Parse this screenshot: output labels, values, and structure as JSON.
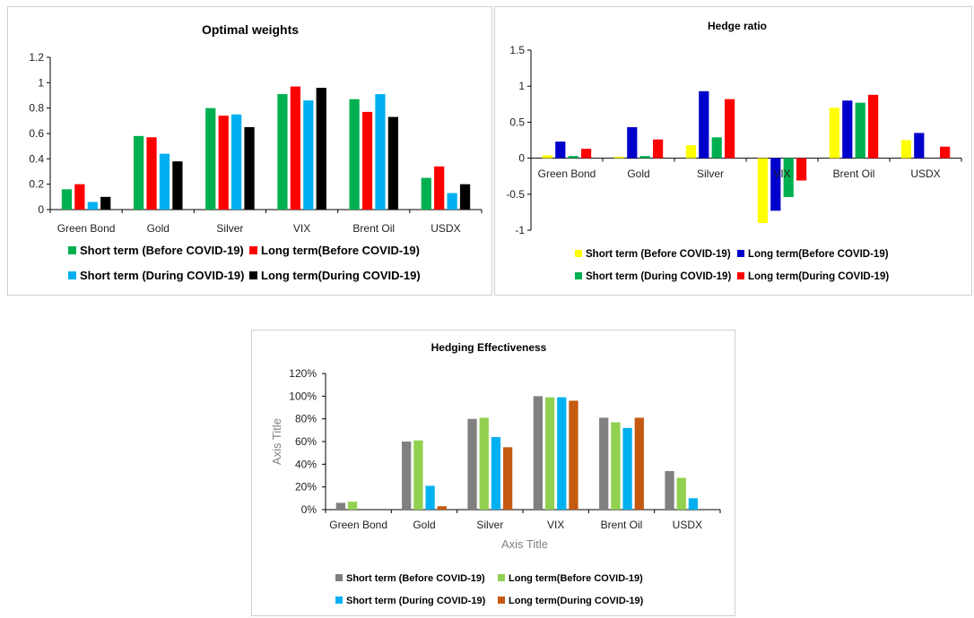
{
  "chart_data": [
    {
      "id": "weights",
      "type": "bar",
      "title": "Optimal weights",
      "categories": [
        "Green Bond",
        "Gold",
        "Silver",
        "VIX",
        "Brent Oil",
        "USDX"
      ],
      "ylim": [
        0,
        1.2
      ],
      "yticks": [
        0,
        0.2,
        0.4,
        0.6,
        0.8,
        1,
        1.2
      ],
      "ytick_labels": [
        "0",
        "0.2",
        "0.4",
        "0.6",
        "0.8",
        "1",
        "1.2"
      ],
      "series": [
        {
          "name": "Short term (Before COVID-19)",
          "color": "#00b050",
          "values": [
            0.16,
            0.58,
            0.8,
            0.91,
            0.87,
            0.25
          ]
        },
        {
          "name": "Long term(Before COVID-19)",
          "color": "#ff0000",
          "values": [
            0.2,
            0.57,
            0.74,
            0.97,
            0.77,
            0.34
          ]
        },
        {
          "name": "Short term (During COVID-19)",
          "color": "#00b0f0",
          "values": [
            0.06,
            0.44,
            0.75,
            0.86,
            0.91,
            0.13
          ]
        },
        {
          "name": "Long term(During COVID-19)",
          "color": "#000000",
          "values": [
            0.1,
            0.38,
            0.65,
            0.96,
            0.73,
            0.2
          ]
        }
      ],
      "grid": false,
      "legend_position": "bottom"
    },
    {
      "id": "hedge",
      "type": "bar",
      "title": "Hedge ratio",
      "categories": [
        "Green Bond",
        "Gold",
        "Silver",
        "VIX",
        "Brent Oil",
        "USDX"
      ],
      "ylim": [
        -1,
        1.5
      ],
      "yticks": [
        -1,
        -0.5,
        0,
        0.5,
        1,
        1.5
      ],
      "ytick_labels": [
        "-1",
        "-0.5",
        "0",
        "0.5",
        "1",
        "1.5"
      ],
      "series": [
        {
          "name": "Short term (Before COVID-19)",
          "color": "#ffff00",
          "values": [
            0.04,
            0.02,
            0.18,
            -0.9,
            0.7,
            0.25
          ]
        },
        {
          "name": "Long term(Before COVID-19)",
          "color": "#0000cc",
          "values": [
            0.23,
            0.43,
            0.93,
            -0.73,
            0.8,
            0.35
          ]
        },
        {
          "name": "Short term (During COVID-19)",
          "color": "#00b050",
          "values": [
            0.03,
            0.03,
            0.29,
            -0.54,
            0.77,
            0.0
          ]
        },
        {
          "name": "Long term(During COVID-19)",
          "color": "#ff0000",
          "values": [
            0.13,
            0.26,
            0.82,
            -0.31,
            0.88,
            0.16
          ]
        }
      ],
      "grid": false,
      "legend_position": "bottom"
    },
    {
      "id": "eff",
      "type": "bar",
      "title": "Hedging Effectiveness",
      "xlabel": "Axis Title",
      "ylabel": "Axis Title",
      "categories": [
        "Green Bond",
        "Gold",
        "Silver",
        "VIX",
        "Brent Oil",
        "USDX"
      ],
      "ylim": [
        0,
        1.2
      ],
      "yticks": [
        0,
        0.2,
        0.4,
        0.6,
        0.8,
        1,
        1.2
      ],
      "ytick_labels": [
        "0%",
        "20%",
        "40%",
        "60%",
        "80%",
        "100%",
        "120%"
      ],
      "series": [
        {
          "name": "Short term (Before COVID-19)",
          "color": "#808080",
          "values": [
            0.06,
            0.6,
            0.8,
            1.0,
            0.81,
            0.34
          ]
        },
        {
          "name": "Long term(Before COVID-19)",
          "color": "#92d050",
          "values": [
            0.07,
            0.61,
            0.81,
            0.99,
            0.77,
            0.28
          ]
        },
        {
          "name": "Short term (During COVID-19)",
          "color": "#00b0f0",
          "values": [
            0.0,
            0.21,
            0.64,
            0.99,
            0.72,
            0.1
          ]
        },
        {
          "name": "Long term(During COVID-19)",
          "color": "#c55a11",
          "values": [
            0.0,
            0.03,
            0.55,
            0.96,
            0.81,
            0.0
          ]
        }
      ],
      "grid": false,
      "legend_position": "bottom"
    }
  ]
}
